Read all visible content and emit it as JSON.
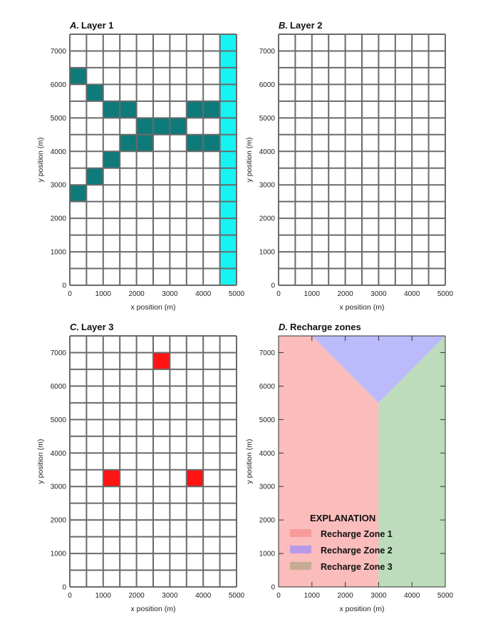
{
  "chart_data": [
    {
      "type": "heatmap",
      "panel": "A.",
      "title": "Layer 1",
      "xlabel": "x position (m)",
      "ylabel": "y position (m)",
      "xlim": [
        0,
        5000
      ],
      "ylim": [
        0,
        7500
      ],
      "xticks": [
        0,
        1000,
        2000,
        3000,
        4000,
        5000
      ],
      "yticks": [
        0,
        1000,
        2000,
        3000,
        4000,
        5000,
        6000,
        7000
      ],
      "grid": {
        "cell_size": 500,
        "cols": 10,
        "rows": 15
      },
      "cell_layers": [
        {
          "name": "teal",
          "color": "#0f7a7a",
          "cells": [
            [
              250,
              6250
            ],
            [
              750,
              5750
            ],
            [
              1250,
              5250
            ],
            [
              1750,
              5250
            ],
            [
              3750,
              5250
            ],
            [
              4250,
              5250
            ],
            [
              2250,
              4750
            ],
            [
              2750,
              4750
            ],
            [
              3250,
              4750
            ],
            [
              1750,
              4250
            ],
            [
              2250,
              4250
            ],
            [
              3750,
              4250
            ],
            [
              4250,
              4250
            ],
            [
              1250,
              3750
            ],
            [
              750,
              3250
            ],
            [
              250,
              2750
            ]
          ]
        },
        {
          "name": "cyan",
          "color": "#18f2f2",
          "cells": [
            [
              4750,
              250
            ],
            [
              4750,
              750
            ],
            [
              4750,
              1250
            ],
            [
              4750,
              1750
            ],
            [
              4750,
              2250
            ],
            [
              4750,
              2750
            ],
            [
              4750,
              3250
            ],
            [
              4750,
              3750
            ],
            [
              4750,
              4250
            ],
            [
              4750,
              4750
            ],
            [
              4750,
              5250
            ],
            [
              4750,
              5750
            ],
            [
              4750,
              6250
            ],
            [
              4750,
              6750
            ],
            [
              4750,
              7250
            ]
          ]
        }
      ]
    },
    {
      "type": "heatmap",
      "panel": "B.",
      "title": "Layer 2",
      "xlabel": "x position (m)",
      "ylabel": "y position (m)",
      "xlim": [
        0,
        5000
      ],
      "ylim": [
        0,
        7500
      ],
      "xticks": [
        0,
        1000,
        2000,
        3000,
        4000,
        5000
      ],
      "yticks": [
        0,
        1000,
        2000,
        3000,
        4000,
        5000,
        6000,
        7000
      ],
      "grid": {
        "cell_size": 500,
        "cols": 10,
        "rows": 15
      },
      "cell_layers": []
    },
    {
      "type": "heatmap",
      "panel": "C.",
      "title": "Layer 3",
      "xlabel": "x position (m)",
      "ylabel": "y position (m)",
      "xlim": [
        0,
        5000
      ],
      "ylim": [
        0,
        7500
      ],
      "xticks": [
        0,
        1000,
        2000,
        3000,
        4000,
        5000
      ],
      "yticks": [
        0,
        1000,
        2000,
        3000,
        4000,
        5000,
        6000,
        7000
      ],
      "grid": {
        "cell_size": 500,
        "cols": 10,
        "rows": 15
      },
      "cell_layers": [
        {
          "name": "red",
          "color": "#ff1414",
          "cells": [
            [
              2750,
              6750
            ],
            [
              1250,
              3250
            ],
            [
              3750,
              3250
            ]
          ]
        }
      ]
    },
    {
      "type": "area",
      "panel": "D.",
      "title": "Recharge zones",
      "xlabel": "x position (m)",
      "ylabel": "y position (m)",
      "xlim": [
        0,
        5000
      ],
      "ylim": [
        0,
        7500
      ],
      "xticks": [
        0,
        1000,
        2000,
        3000,
        4000,
        5000
      ],
      "yticks": [
        0,
        1000,
        2000,
        3000,
        4000,
        5000,
        6000,
        7000
      ],
      "legend_title": "EXPLANATION",
      "legend_placement": "bottom-left",
      "zones": [
        {
          "name": "Recharge Zone 1",
          "color": "#fbbcbc",
          "legend_color": "#f99a9a",
          "polygon": [
            [
              0,
              0
            ],
            [
              3000,
              0
            ],
            [
              3000,
              5500
            ],
            [
              1000,
              7500
            ],
            [
              0,
              7500
            ]
          ]
        },
        {
          "name": "Recharge Zone 2",
          "color": "#bbbbfb",
          "legend_color": "#b99ae6",
          "polygon": [
            [
              1000,
              7500
            ],
            [
              5000,
              7500
            ],
            [
              3000,
              5500
            ]
          ]
        },
        {
          "name": "Recharge Zone 3",
          "color": "#bcdcbc",
          "legend_color": "#c4ad92",
          "polygon": [
            [
              3000,
              0
            ],
            [
              5000,
              0
            ],
            [
              5000,
              7500
            ],
            [
              3000,
              5500
            ]
          ]
        }
      ]
    }
  ]
}
